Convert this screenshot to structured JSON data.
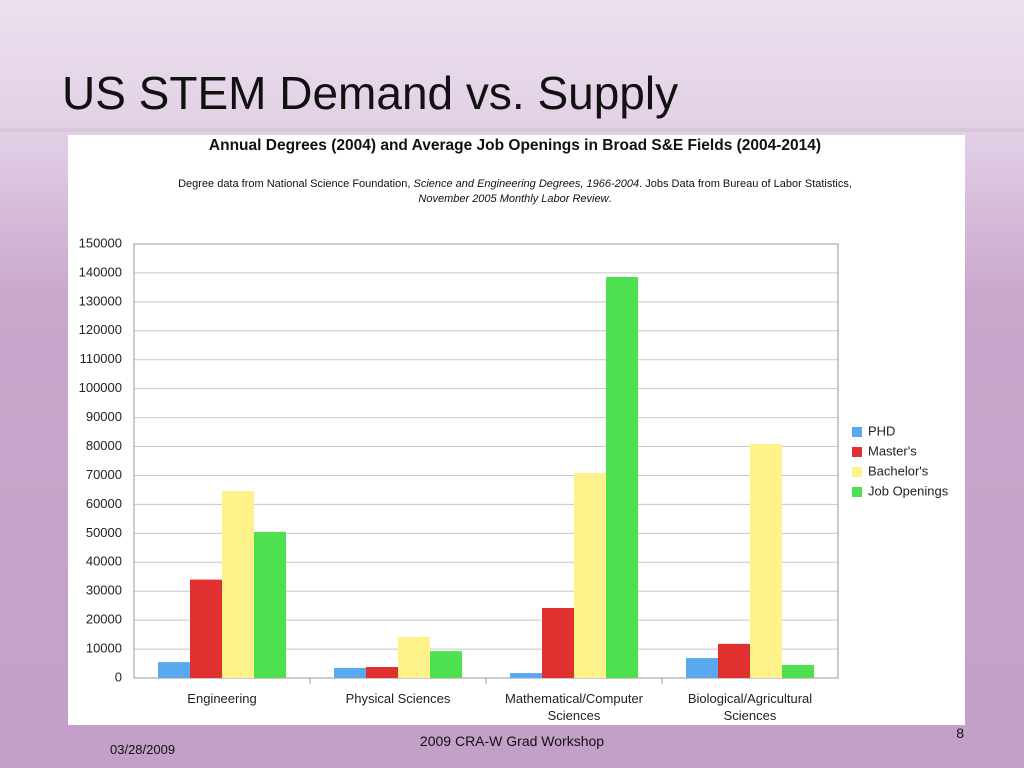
{
  "slide": {
    "title": "US STEM Demand vs. Supply",
    "date": "03/28/2009",
    "footer": "2009 CRA-W Grad Workshop",
    "page_number": "8"
  },
  "chart_data": {
    "type": "bar",
    "title": "Annual Degrees (2004) and Average Job Openings in Broad S&E Fields (2004-2014)",
    "subtitle": [
      {
        "text": "Degree data from National Science Foundation, ",
        "italic": false
      },
      {
        "text": "Science and Engineering Degrees, 1966-2004",
        "italic": true
      },
      {
        "text": ".  Jobs Data from Bureau of Labor Statistics, ",
        "italic": false
      },
      {
        "text": "November 2005 Monthly Labor Review",
        "italic": true
      },
      {
        "text": ".",
        "italic": false
      }
    ],
    "categories": [
      "Engineering",
      "Physical Sciences",
      "Mathematical/Computer Sciences",
      "Biological/Agricultural Sciences"
    ],
    "series": [
      {
        "name": "PHD",
        "color": "#5aa9f0",
        "values": [
          5500,
          3500,
          1700,
          6900
        ]
      },
      {
        "name": "Master's",
        "color": "#e0302f",
        "values": [
          34000,
          3800,
          24200,
          11800
        ]
      },
      {
        "name": "Bachelor's",
        "color": "#fff28a",
        "values": [
          64600,
          14200,
          70900,
          80900
        ]
      },
      {
        "name": "Job Openings",
        "color": "#4fe04f",
        "values": [
          50500,
          9300,
          138600,
          4500
        ]
      }
    ],
    "ylim": [
      0,
      150000
    ],
    "yticks": [
      0,
      10000,
      20000,
      30000,
      40000,
      50000,
      60000,
      70000,
      80000,
      90000,
      100000,
      110000,
      120000,
      130000,
      140000,
      150000
    ],
    "grid": true,
    "legend": "right"
  }
}
